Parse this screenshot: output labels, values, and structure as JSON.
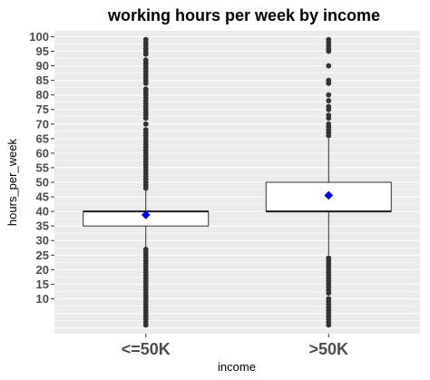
{
  "chart_data": {
    "type": "box",
    "title": "working hours per week by income",
    "xlabel": "income",
    "ylabel": "hours_per_week",
    "categories": [
      "<=50K",
      ">50K"
    ],
    "ylim": [
      -2,
      102
    ],
    "yticks": [
      10,
      15,
      20,
      25,
      30,
      35,
      40,
      45,
      50,
      55,
      60,
      65,
      70,
      75,
      80,
      85,
      90,
      95,
      100
    ],
    "grid": true,
    "boxes": [
      {
        "category": "<=50K",
        "q1": 35,
        "median": 40,
        "q3": 40,
        "whisker_low": 27.5,
        "whisker_high": 47.5,
        "mean": 38.8,
        "outliers": [
          1,
          2,
          3,
          4,
          5,
          6,
          7,
          8,
          9,
          10,
          11,
          12,
          13,
          14,
          15,
          16,
          17,
          18,
          19,
          20,
          21,
          22,
          23,
          24,
          25,
          26,
          27,
          48,
          49,
          50,
          51,
          52,
          53,
          54,
          55,
          56,
          57,
          58,
          59,
          60,
          61,
          62,
          63,
          64,
          65,
          66,
          67,
          68,
          70,
          72,
          73,
          74,
          75,
          76,
          77,
          78,
          79,
          80,
          81,
          82,
          84,
          85,
          86,
          87,
          88,
          89,
          90,
          91,
          92,
          94,
          95,
          96,
          97,
          98,
          99
        ]
      },
      {
        "category": ">50K",
        "q1": 40,
        "median": 40,
        "q3": 50,
        "whisker_low": 25,
        "whisker_high": 65,
        "mean": 45.5,
        "outliers": [
          1,
          2,
          3,
          4,
          5,
          6,
          7,
          8,
          9,
          10,
          12,
          13,
          14,
          15,
          16,
          17,
          18,
          19,
          20,
          21,
          22,
          23,
          24,
          66,
          67,
          68,
          69,
          70,
          72,
          73,
          75,
          76,
          78,
          80,
          84,
          85,
          90,
          95,
          96,
          97,
          98,
          99
        ]
      }
    ],
    "colors": {
      "panel": "#ebebeb",
      "grid": "#ffffff",
      "box_fill": "#ffffff",
      "box_line": "#1a1a1a",
      "outlier": "#333333",
      "mean": "#0000ff"
    }
  }
}
